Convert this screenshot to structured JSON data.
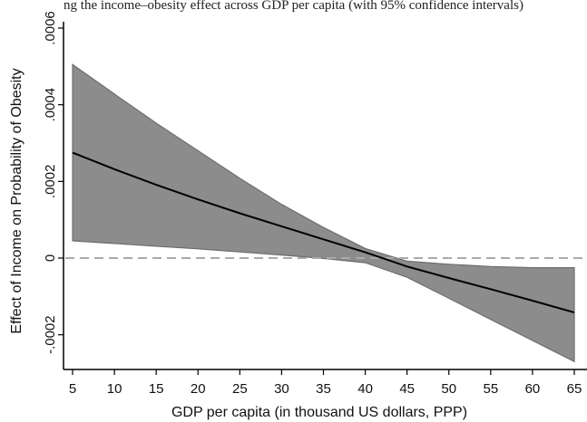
{
  "caption": "ng the income–obesity effect across GDP per capita (with 95% confidence intervals)",
  "chart_data": {
    "type": "line",
    "xlabel": "GDP per capita (in thousand US dollars, PPP)",
    "ylabel": "Effect of Income on Probability of Obesity",
    "xlim": [
      5,
      65
    ],
    "ylim": [
      -0.00026,
      0.0006
    ],
    "x_ticks": [
      "5",
      "10",
      "15",
      "20",
      "25",
      "30",
      "35",
      "40",
      "45",
      "50",
      "55",
      "60",
      "65"
    ],
    "y_ticks": [
      {
        "value": -0.0002,
        "label": "-.0002"
      },
      {
        "value": 0,
        "label": "0"
      },
      {
        "value": 0.0002,
        "label": ".0002"
      },
      {
        "value": 0.0004,
        "label": ".0004"
      },
      {
        "value": 0.0006,
        "label": ".0006"
      }
    ],
    "series": [
      {
        "role": "estimate",
        "x": [
          5,
          10,
          15,
          20,
          25,
          30,
          35,
          40,
          45,
          50,
          55,
          60,
          65
        ],
        "y": [
          0.000275,
          0.000232,
          0.000191,
          0.000153,
          0.000117,
          8.3e-05,
          4.9e-05,
          1.5e-05,
          -2.2e-05,
          -5.2e-05,
          -8.1e-05,
          -0.000111,
          -0.000142
        ]
      },
      {
        "role": "ci_lower",
        "x": [
          5,
          10,
          15,
          20,
          25,
          30,
          35,
          40,
          45,
          50,
          55,
          60,
          65
        ],
        "y": [
          4.5e-05,
          3.8e-05,
          3.1e-05,
          2.4e-05,
          1.6e-05,
          8e-06,
          -1e-06,
          -1.2e-05,
          -5e-05,
          -0.000105,
          -0.00016,
          -0.000215,
          -0.00027
        ]
      },
      {
        "role": "ci_upper",
        "x": [
          5,
          10,
          15,
          20,
          25,
          30,
          35,
          40,
          45,
          50,
          55,
          60,
          65
        ],
        "y": [
          0.000505,
          0.000428,
          0.000352,
          0.00028,
          0.000208,
          0.00014,
          8e-05,
          2.5e-05,
          -8e-06,
          -1.6e-05,
          -2.2e-05,
          -2.5e-05,
          -2.5e-05
        ]
      }
    ],
    "reference_line": {
      "y": 0,
      "style": "dashed"
    },
    "grid": false,
    "colors": {
      "band": "#8c8c8c",
      "band_edge": "#6e6e6e",
      "line": "#000000",
      "reference": "#aaaaaa",
      "axis": "#000000"
    }
  }
}
